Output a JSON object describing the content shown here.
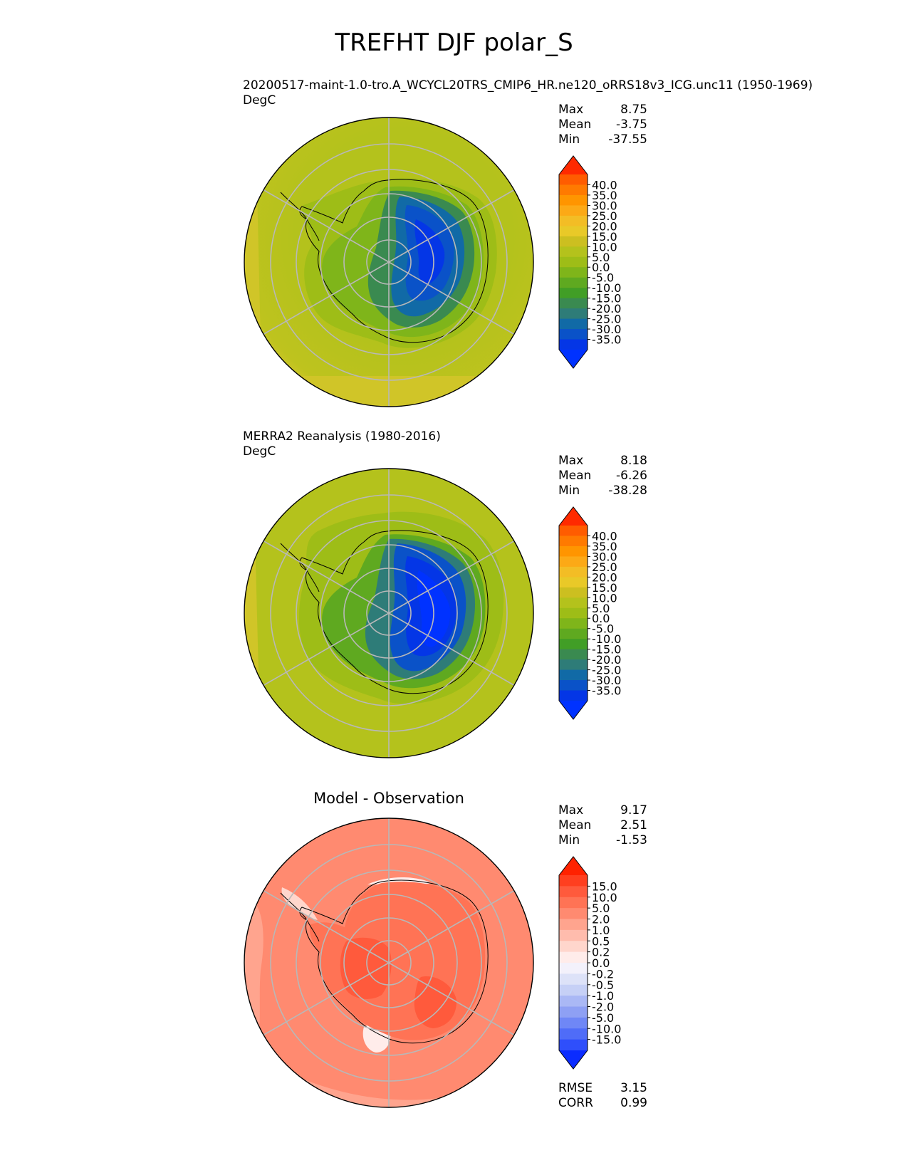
{
  "suptitle": "TREFHT DJF polar_S",
  "panels": [
    {
      "id": "test",
      "title_line1": "20200517-maint-1.0-tro.A_WCYCL20TRS_CMIP6_HR.ne120_oRRS18v3_ICG.unc11 (1950-1969)",
      "title_line2": "DegC",
      "stats": {
        "max_label": "Max",
        "max": "8.75",
        "mean_label": "Mean",
        "mean": "-3.75",
        "min_label": "Min",
        "min": "-37.55"
      }
    },
    {
      "id": "ref",
      "title_line1": "MERRA2 Reanalysis (1980-2016)",
      "title_line2": "DegC",
      "stats": {
        "max_label": "Max",
        "max": "8.18",
        "mean_label": "Mean",
        "mean": "-6.26",
        "min_label": "Min",
        "min": "-38.28"
      }
    },
    {
      "id": "diff",
      "title": "Model - Observation",
      "stats": {
        "max_label": "Max",
        "max": "9.17",
        "mean_label": "Mean",
        "mean": "2.51",
        "min_label": "Min",
        "min": "-1.53"
      },
      "metrics": {
        "rmse_label": "RMSE",
        "rmse": "3.15",
        "corr_label": "CORR",
        "corr": "0.99"
      }
    }
  ],
  "chart_data": [
    {
      "type": "heatmap",
      "projection": "south-polar-stereographic",
      "units": "DegC",
      "max": 8.75,
      "mean": -3.75,
      "min": -37.55,
      "colorbar": {
        "ticks": [
          "40.0",
          "35.0",
          "30.0",
          "25.0",
          "20.0",
          "15.0",
          "10.0",
          "5.0",
          "0.0",
          "-5.0",
          "-10.0",
          "-15.0",
          "-20.0",
          "-25.0",
          "-30.0",
          "-35.0"
        ],
        "colors": [
          "#ff2a00",
          "#ff5c00",
          "#ff7a00",
          "#ff9500",
          "#fca916",
          "#f3bd25",
          "#e9c928",
          "#ccbf20",
          "#b4c21c",
          "#9ebd17",
          "#7fb51a",
          "#5fa920",
          "#419e26",
          "#3a8a50",
          "#2e7c78",
          "#116aa6",
          "#0a52c8",
          "#0436e6",
          "#0032ff"
        ],
        "extend": "both"
      },
      "grid": true
    },
    {
      "type": "heatmap",
      "projection": "south-polar-stereographic",
      "units": "DegC",
      "max": 8.18,
      "mean": -6.26,
      "min": -38.28,
      "colorbar": {
        "ticks": [
          "40.0",
          "35.0",
          "30.0",
          "25.0",
          "20.0",
          "15.0",
          "10.0",
          "5.0",
          "0.0",
          "-5.0",
          "-10.0",
          "-15.0",
          "-20.0",
          "-25.0",
          "-30.0",
          "-35.0"
        ],
        "colors": [
          "#ff2a00",
          "#ff5c00",
          "#ff7a00",
          "#ff9500",
          "#fca916",
          "#f3bd25",
          "#e9c928",
          "#ccbf20",
          "#b4c21c",
          "#9ebd17",
          "#7fb51a",
          "#5fa920",
          "#419e26",
          "#3a8a50",
          "#2e7c78",
          "#116aa6",
          "#0a52c8",
          "#0436e6",
          "#0032ff"
        ],
        "extend": "both"
      },
      "grid": true
    },
    {
      "type": "heatmap",
      "projection": "south-polar-stereographic",
      "title": "Model - Observation",
      "max": 9.17,
      "mean": 2.51,
      "min": -1.53,
      "rmse": 3.15,
      "corr": 0.99,
      "colorbar": {
        "ticks": [
          "15.0",
          "10.0",
          "5.0",
          "2.0",
          "1.0",
          "0.5",
          "0.2",
          "0.0",
          "-0.2",
          "-0.5",
          "-1.0",
          "-2.0",
          "-5.0",
          "-10.0",
          "-15.0"
        ],
        "colors": [
          "#ff2200",
          "#ff3f1f",
          "#ff5a3c",
          "#ff7355",
          "#ff8a70",
          "#ffa48e",
          "#ffbcad",
          "#ffd6cc",
          "#ffecea",
          "#f3f1fb",
          "#dde2f8",
          "#c6d0f6",
          "#aab8f5",
          "#8ea0f4",
          "#6f87f6",
          "#4f6cf8",
          "#2f4ffb",
          "#0b2cff"
        ],
        "extend": "both"
      },
      "grid": true
    }
  ]
}
